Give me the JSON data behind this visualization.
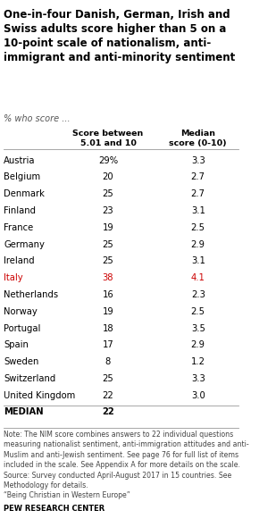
{
  "title": "One-in-four Danish, German, Irish and\nSwiss adults score higher than 5 on a\n10-point scale of nationalism, anti-\nimmigrant and anti-minority sentiment",
  "subtitle": "% who score ...",
  "col1_header": "Score between\n5.01 and 10",
  "col2_header": "Median\nscore (0-10)",
  "countries": [
    "Austria",
    "Belgium",
    "Denmark",
    "Finland",
    "France",
    "Germany",
    "Ireland",
    "Italy",
    "Netherlands",
    "Norway",
    "Portugal",
    "Spain",
    "Sweden",
    "Switzerland",
    "United Kingdom"
  ],
  "scores": [
    "29%",
    "20",
    "25",
    "23",
    "19",
    "25",
    "25",
    "38",
    "16",
    "19",
    "18",
    "17",
    "8",
    "25",
    "22"
  ],
  "medians": [
    "3.3",
    "2.7",
    "2.7",
    "3.1",
    "2.5",
    "2.9",
    "3.1",
    "4.1",
    "2.3",
    "2.5",
    "3.5",
    "2.9",
    "1.2",
    "3.3",
    "3.0"
  ],
  "median_row_label": "MEDIAN",
  "median_row_score": "22",
  "note_text": "Note: The NIM score combines answers to 22 individual questions\nmeasuring nationalist sentiment, anti-immigration attitudes and anti-\nMuslim and anti-Jewish sentiment. See page 76 for full list of items\nincluded in the scale. See Appendix A for more details on the scale.\nSource: Survey conducted April-August 2017 in 15 countries. See\nMethodology for details.\n“Being Christian in Western Europe”",
  "source_label": "PEW RESEARCH CENTER",
  "bg_color": "#FFFFFF",
  "title_color": "#000000",
  "text_color": "#000000",
  "note_color": "#444444",
  "italy_color": "#CC0000",
  "normal_color": "#000000"
}
